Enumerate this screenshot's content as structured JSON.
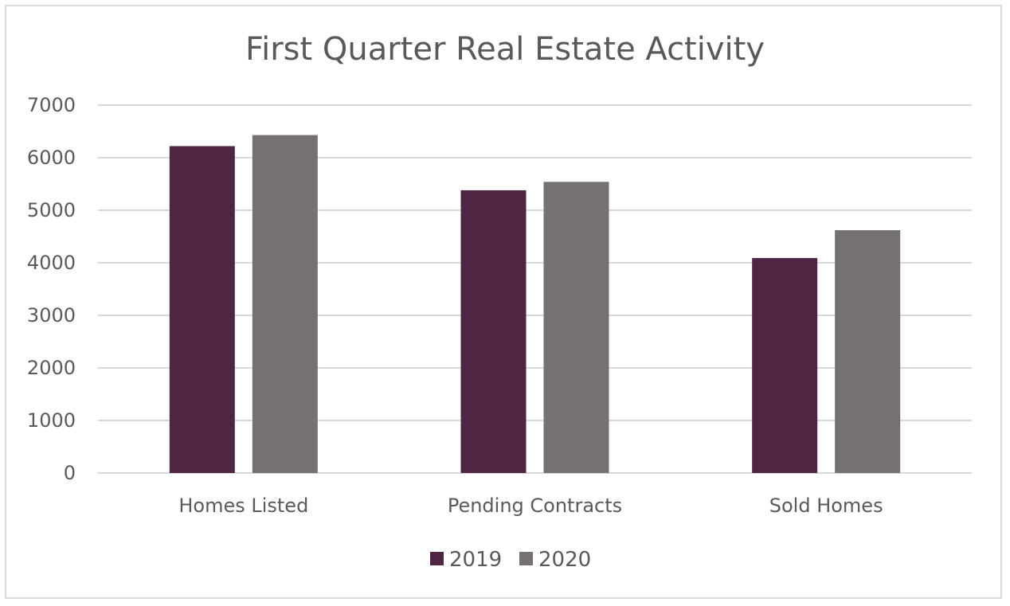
{
  "chart_data": {
    "type": "bar",
    "title": "First Quarter Real Estate Activity",
    "categories": [
      "Homes Listed",
      "Pending Contracts",
      "Sold Homes"
    ],
    "series": [
      {
        "name": "2019",
        "values": [
          6220,
          5380,
          4090
        ],
        "color": "#4e2644"
      },
      {
        "name": "2020",
        "values": [
          6430,
          5540,
          4620
        ],
        "color": "#757171"
      }
    ],
    "y_ticks": [
      "0",
      "1000",
      "2000",
      "3000",
      "4000",
      "5000",
      "6000",
      "7000"
    ],
    "ylim": [
      0,
      7000
    ],
    "grid": true,
    "legend_position": "bottom"
  }
}
